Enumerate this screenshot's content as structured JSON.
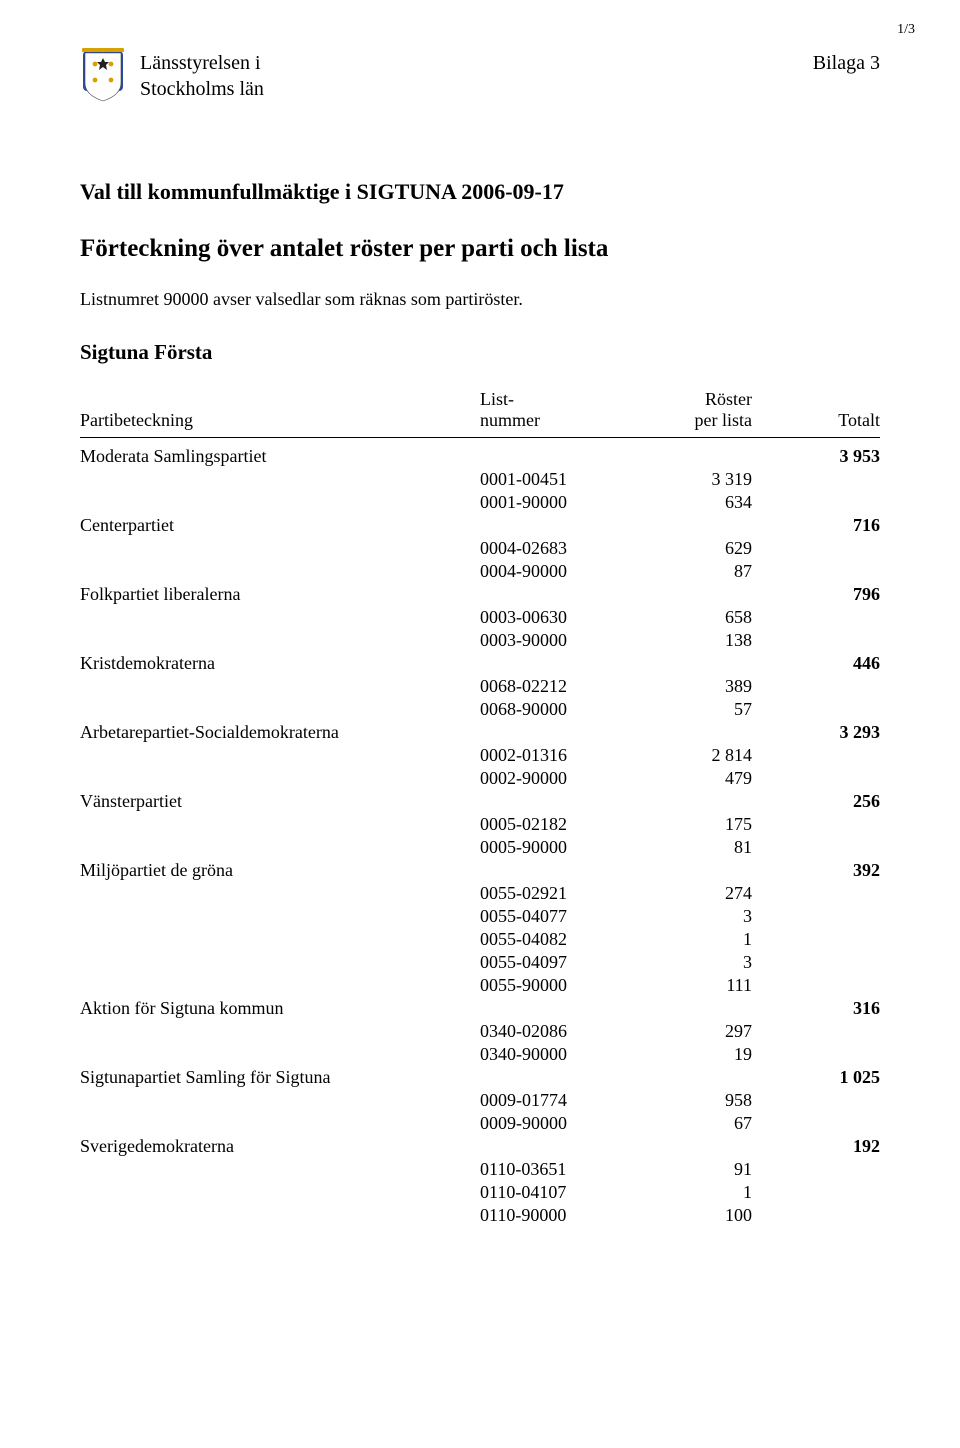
{
  "page_number": "1/3",
  "appendix": "Bilaga 3",
  "org_line1": "Länsstyrelsen i",
  "org_line2": "Stockholms län",
  "title": "Val till kommunfullmäktige i SIGTUNA 2006-09-17",
  "subtitle": "Förteckning över antalet röster per parti och lista",
  "note": "Listnumret 90000 avser valsedlar som räknas som partiröster.",
  "region": "Sigtuna  Första",
  "headers": {
    "party": "Partibeteckning",
    "list_l1": "List-",
    "list_l2": "nummer",
    "roster_l1": "Röster",
    "roster_l2": "per lista",
    "total": "Totalt"
  },
  "parties": [
    {
      "name": "Moderata Samlingspartiet",
      "total": "3 953",
      "rows": [
        {
          "list": "0001-00451",
          "roster": "3 319"
        },
        {
          "list": "0001-90000",
          "roster": "634"
        }
      ]
    },
    {
      "name": "Centerpartiet",
      "total": "716",
      "rows": [
        {
          "list": "0004-02683",
          "roster": "629"
        },
        {
          "list": "0004-90000",
          "roster": "87"
        }
      ]
    },
    {
      "name": "Folkpartiet liberalerna",
      "total": "796",
      "rows": [
        {
          "list": "0003-00630",
          "roster": "658"
        },
        {
          "list": "0003-90000",
          "roster": "138"
        }
      ]
    },
    {
      "name": "Kristdemokraterna",
      "total": "446",
      "rows": [
        {
          "list": "0068-02212",
          "roster": "389"
        },
        {
          "list": "0068-90000",
          "roster": "57"
        }
      ]
    },
    {
      "name": "Arbetarepartiet-Socialdemokraterna",
      "total": "3 293",
      "rows": [
        {
          "list": "0002-01316",
          "roster": "2 814"
        },
        {
          "list": "0002-90000",
          "roster": "479"
        }
      ]
    },
    {
      "name": "Vänsterpartiet",
      "total": "256",
      "rows": [
        {
          "list": "0005-02182",
          "roster": "175"
        },
        {
          "list": "0005-90000",
          "roster": "81"
        }
      ]
    },
    {
      "name": "Miljöpartiet de gröna",
      "total": "392",
      "rows": [
        {
          "list": "0055-02921",
          "roster": "274"
        },
        {
          "list": "0055-04077",
          "roster": "3"
        },
        {
          "list": "0055-04082",
          "roster": "1"
        },
        {
          "list": "0055-04097",
          "roster": "3"
        },
        {
          "list": "0055-90000",
          "roster": "111"
        }
      ]
    },
    {
      "name": "Aktion för Sigtuna kommun",
      "total": "316",
      "rows": [
        {
          "list": "0340-02086",
          "roster": "297"
        },
        {
          "list": "0340-90000",
          "roster": "19"
        }
      ]
    },
    {
      "name": "Sigtunapartiet Samling för Sigtuna",
      "total": "1 025",
      "rows": [
        {
          "list": "0009-01774",
          "roster": "958"
        },
        {
          "list": "0009-90000",
          "roster": "67"
        }
      ]
    },
    {
      "name": "Sverigedemokraterna",
      "total": "192",
      "rows": [
        {
          "list": "0110-03651",
          "roster": "91"
        },
        {
          "list": "0110-04107",
          "roster": "1"
        },
        {
          "list": "0110-90000",
          "roster": "100"
        }
      ]
    }
  ],
  "colors": {
    "text": "#000000",
    "bg": "#ffffff",
    "accent_blue": "#2a4b9b",
    "accent_gold": "#d8a100"
  }
}
